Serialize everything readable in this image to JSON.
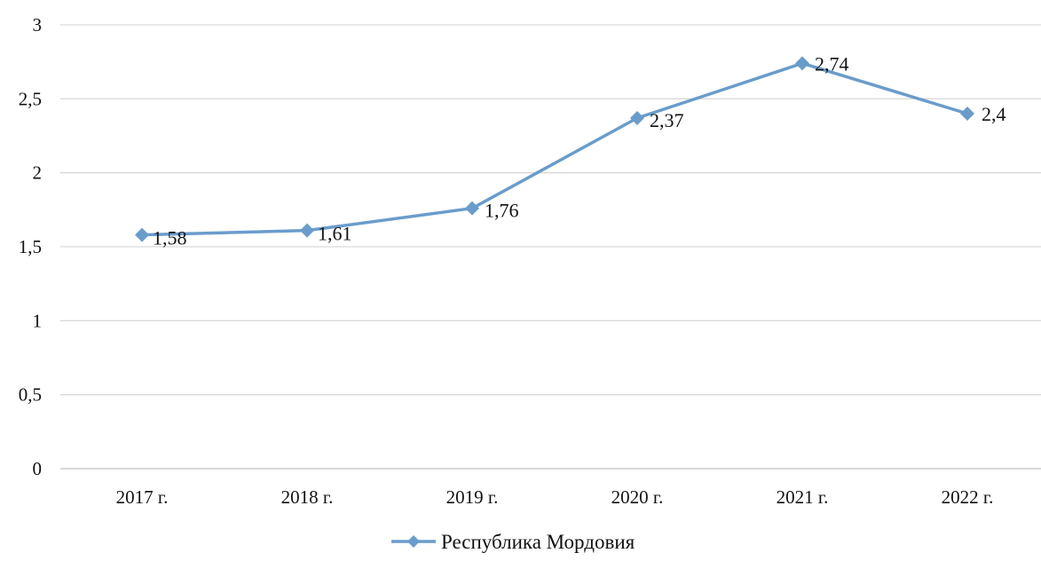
{
  "chart_data": {
    "type": "line",
    "title": "",
    "xlabel": "",
    "ylabel": "",
    "categories": [
      "2017 г.",
      "2018 г.",
      "2019 г.",
      "2020 г.",
      "2021 г.",
      "2022 г."
    ],
    "series": [
      {
        "name": "Республика Мордовия",
        "values": [
          1.58,
          1.61,
          1.76,
          2.37,
          2.74,
          2.4
        ],
        "labels": [
          "1,58",
          "1,61",
          "1,76",
          "2,37",
          "2,74",
          "2,4"
        ],
        "color": "#6a9ccb",
        "marker": "diamond"
      }
    ],
    "ylim": [
      0,
      3
    ],
    "yticks": [
      0,
      0.5,
      1,
      1.5,
      2,
      2.5,
      3
    ],
    "ytick_labels": [
      "0",
      "0,5",
      "1",
      "1,5",
      "2",
      "2,5",
      "3"
    ],
    "grid": true,
    "legend_position": "bottom-center",
    "colors": {
      "gridline": "#d9d9d9",
      "axis": "#bfbfbf"
    }
  }
}
